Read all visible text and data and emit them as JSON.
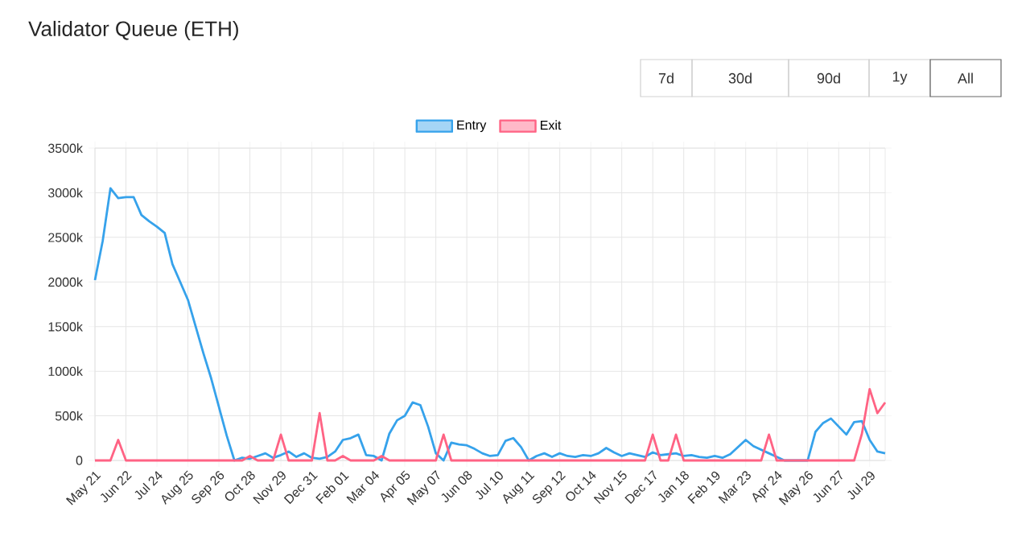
{
  "chart_data": {
    "type": "line",
    "title": "Validator Queue (ETH)",
    "annotations": [
      "7d",
      "30d",
      "90d",
      "1y",
      "All"
    ],
    "categories": [
      "May 21",
      null,
      null,
      null,
      "Jun 22",
      null,
      null,
      null,
      "Jul 24",
      null,
      null,
      null,
      "Aug 25",
      null,
      null,
      null,
      "Sep 26",
      null,
      null,
      null,
      "Oct 28",
      null,
      null,
      null,
      "Nov 29",
      null,
      null,
      null,
      "Dec 31",
      null,
      null,
      null,
      "Feb 01",
      null,
      null,
      null,
      "Mar 04",
      null,
      null,
      null,
      "Apr 05",
      null,
      null,
      null,
      "May 07",
      null,
      null,
      null,
      "Jun 08",
      null,
      null,
      null,
      "Jul 10",
      null,
      null,
      null,
      "Aug 11",
      null,
      null,
      null,
      "Sep 12",
      null,
      null,
      null,
      "Oct 14",
      null,
      null,
      null,
      "Nov 15",
      null,
      null,
      null,
      "Dec 17",
      null,
      null,
      null,
      "Jan 18",
      null,
      null,
      null,
      "Feb 19",
      null,
      null,
      null,
      "Mar 23",
      null,
      null,
      null,
      "Apr 24",
      null,
      null,
      null,
      "May 26",
      null,
      null,
      null,
      "Jun 27",
      null,
      null,
      null,
      "Jul 29",
      null,
      null
    ],
    "series": [
      {
        "name": "Entry",
        "color": "#36a2eb",
        "values": [
          2020,
          2460,
          3050,
          2940,
          2950,
          2950,
          2750,
          2680,
          2620,
          2550,
          2200,
          2000,
          1800,
          1500,
          1200,
          920,
          600,
          280,
          0,
          30,
          20,
          50,
          80,
          30,
          60,
          100,
          40,
          80,
          30,
          20,
          40,
          100,
          230,
          250,
          290,
          60,
          50,
          0,
          300,
          450,
          500,
          650,
          620,
          380,
          80,
          0,
          200,
          180,
          170,
          130,
          80,
          50,
          60,
          220,
          250,
          150,
          0,
          50,
          80,
          40,
          80,
          50,
          40,
          60,
          50,
          80,
          140,
          90,
          50,
          80,
          60,
          40,
          90,
          60,
          70,
          80,
          50,
          60,
          40,
          30,
          50,
          30,
          70,
          150,
          230,
          160,
          120,
          80,
          40,
          0,
          0,
          0,
          0,
          320,
          420,
          470,
          380,
          290,
          430,
          440,
          230,
          100,
          80
        ]
      },
      {
        "name": "Exit",
        "color": "#ff6384",
        "values": [
          0,
          0,
          0,
          230,
          0,
          0,
          0,
          0,
          0,
          0,
          0,
          0,
          0,
          0,
          0,
          0,
          0,
          0,
          0,
          0,
          50,
          0,
          0,
          0,
          290,
          0,
          0,
          0,
          0,
          530,
          0,
          0,
          50,
          0,
          0,
          0,
          0,
          50,
          0,
          0,
          0,
          0,
          0,
          0,
          0,
          290,
          0,
          0,
          0,
          0,
          0,
          0,
          0,
          0,
          0,
          0,
          0,
          0,
          0,
          0,
          0,
          0,
          0,
          0,
          0,
          0,
          0,
          0,
          0,
          0,
          0,
          0,
          290,
          0,
          0,
          290,
          0,
          0,
          0,
          0,
          0,
          0,
          0,
          0,
          0,
          0,
          0,
          290,
          0,
          0,
          0,
          0,
          0,
          0,
          0,
          0,
          0,
          0,
          0,
          300,
          800,
          530,
          650
        ]
      }
    ],
    "ylim": [
      0,
      3500
    ],
    "yticks": [
      0,
      {
        "value": 500,
        "label": "500k"
      },
      {
        "value": 1000,
        "label": "1000k"
      },
      {
        "value": 1500,
        "label": "1500k"
      },
      {
        "value": 2000,
        "label": "2000k"
      },
      {
        "value": 2500,
        "label": "2500k"
      },
      {
        "value": 3000,
        "label": "3000k"
      },
      {
        "value": 3500,
        "label": "3500k"
      }
    ],
    "grid": true,
    "legend": "top",
    "marker": "none",
    "line_style": "solid"
  }
}
